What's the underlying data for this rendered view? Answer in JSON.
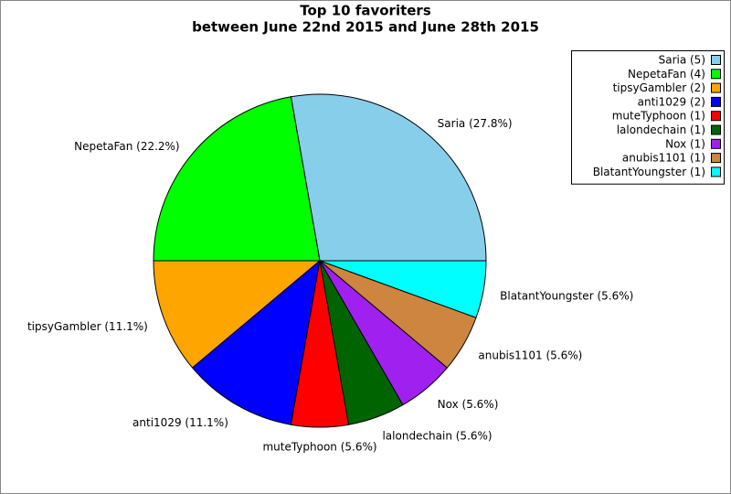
{
  "chart_data": {
    "type": "pie",
    "title": "Top 10 favoriters",
    "subtitle": "between June 22nd 2015 and June 28th 2015",
    "categories": [
      "Saria (5)",
      "NepetaFan (4)",
      "tipsyGambler (2)",
      "anti1029 (2)",
      "muteTyphoon (1)",
      "lalondechain (1)",
      "Nox (1)",
      "anubis1101 (1)",
      "BlatantYoungster (1)"
    ],
    "values": [
      5,
      4,
      2,
      2,
      1,
      1,
      1,
      1,
      1
    ],
    "value_labels": [
      "Saria (27.8%)",
      "NepetaFan (22.2%)",
      "tipsyGambler (11.1%)",
      "anti1029 (11.1%)",
      "muteTyphoon (5.6%)",
      "lalondechain (5.6%)",
      "Nox (5.6%)",
      "anubis1101 (5.6%)",
      "BlatantYoungster (5.6%)"
    ],
    "colors": [
      "#87ceeb",
      "#00ff00",
      "#ffa500",
      "#0000ff",
      "#ff0000",
      "#006400",
      "#a020f0",
      "#cd853f",
      "#00ffff"
    ],
    "legend": "upper right"
  }
}
